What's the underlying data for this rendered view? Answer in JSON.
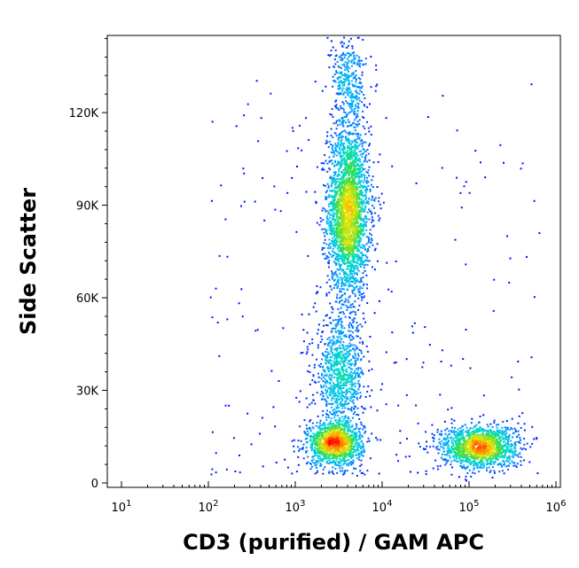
{
  "chart_data": {
    "type": "scatter",
    "title": "",
    "xlabel": "CD3 (purified) / GAM APC",
    "ylabel": "Side Scatter",
    "x_scale": "log",
    "xlim": [
      10,
      1000000
    ],
    "ylim": [
      0,
      145000
    ],
    "x_ticks": [
      {
        "value": 10,
        "base": "10",
        "exp": "1"
      },
      {
        "value": 100,
        "base": "10",
        "exp": "2"
      },
      {
        "value": 1000,
        "base": "10",
        "exp": "3"
      },
      {
        "value": 10000,
        "base": "10",
        "exp": "4"
      },
      {
        "value": 100000,
        "base": "10",
        "exp": "5"
      },
      {
        "value": 1000000,
        "base": "10",
        "exp": "6"
      }
    ],
    "y_ticks": [
      {
        "value": 0,
        "label": "0"
      },
      {
        "value": 30000,
        "label": "30K"
      },
      {
        "value": 60000,
        "label": "60K"
      },
      {
        "value": 90000,
        "label": "90K"
      },
      {
        "value": 120000,
        "label": "120K"
      }
    ],
    "grid": false,
    "colormap": "density (blue → cyan → green → yellow → red)",
    "populations": [
      {
        "x_center": 4000,
        "y_center": 88000,
        "x_spread_log": 0.12,
        "y_spread": 14000,
        "points": 2600
      },
      {
        "x_center": 3200,
        "y_center": 35000,
        "x_spread_log": 0.14,
        "y_spread": 9000,
        "points": 900
      },
      {
        "x_center": 2800,
        "y_center": 13000,
        "x_spread_log": 0.16,
        "y_spread": 3500,
        "points": 1200
      },
      {
        "x_center": 130000,
        "y_center": 12000,
        "x_spread_log": 0.22,
        "y_spread": 3500,
        "points": 1400
      },
      {
        "x_center": 4000,
        "y_center": 130000,
        "x_spread_log": 0.1,
        "y_spread": 8000,
        "points": 350
      }
    ]
  }
}
